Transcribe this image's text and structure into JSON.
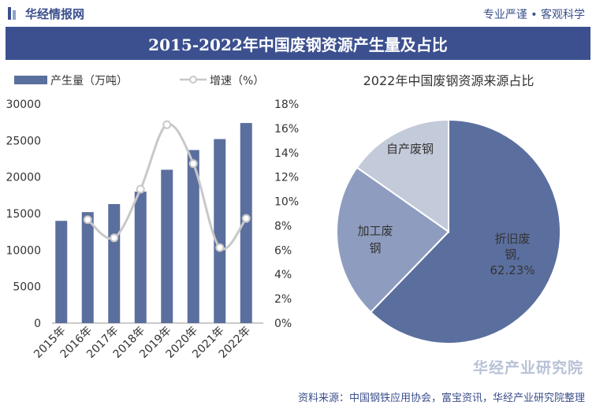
{
  "header": {
    "brand": "华经情报网",
    "slogan": "专业严谨 • 客观科学",
    "title": "2015-2022年中国废钢资源产生量及占比"
  },
  "footer": {
    "source": "资料来源：中国钢铁应用协会，富宝资讯，华经产业研究院整理",
    "watermark": "华经产业研究院"
  },
  "colors": {
    "bar": "#5b6f9e",
    "line": "#c8c8c8",
    "title_bg": "#3c5090",
    "pie": [
      "#5b6f9e",
      "#8e9dbf",
      "#c3cad9"
    ]
  },
  "chart_data": [
    {
      "type": "bar",
      "categories": [
        "2015年",
        "2016年",
        "2017年",
        "2018年",
        "2019年",
        "2020年",
        "2021年",
        "2022年"
      ],
      "series": [
        {
          "name": "产生量（万吨）",
          "type": "bar",
          "axis": "left",
          "values": [
            14000,
            15200,
            16300,
            18000,
            21000,
            23700,
            25200,
            27400
          ]
        },
        {
          "name": "增速（%）",
          "type": "line",
          "axis": "right",
          "values": [
            null,
            8.5,
            7.0,
            11.0,
            16.3,
            13.1,
            6.2,
            8.6
          ]
        }
      ],
      "yticks_left": [
        "0",
        "5000",
        "10000",
        "15000",
        "20000",
        "25000",
        "30000"
      ],
      "yticks_right": [
        "0%",
        "2%",
        "4%",
        "6%",
        "8%",
        "10%",
        "12%",
        "14%",
        "16%",
        "18%"
      ],
      "ylim_left": [
        0,
        30000
      ],
      "ylim_right": [
        0,
        18
      ],
      "legend": "top-left"
    },
    {
      "type": "pie",
      "title": "2022年中国废钢资源来源占比",
      "slices": [
        {
          "label": "折旧废钢,",
          "value_label": "62.23%",
          "value": 62.23
        },
        {
          "label": "加工废钢",
          "value": 22.5
        },
        {
          "label": "自产废钢",
          "value": 15.27
        }
      ]
    }
  ]
}
